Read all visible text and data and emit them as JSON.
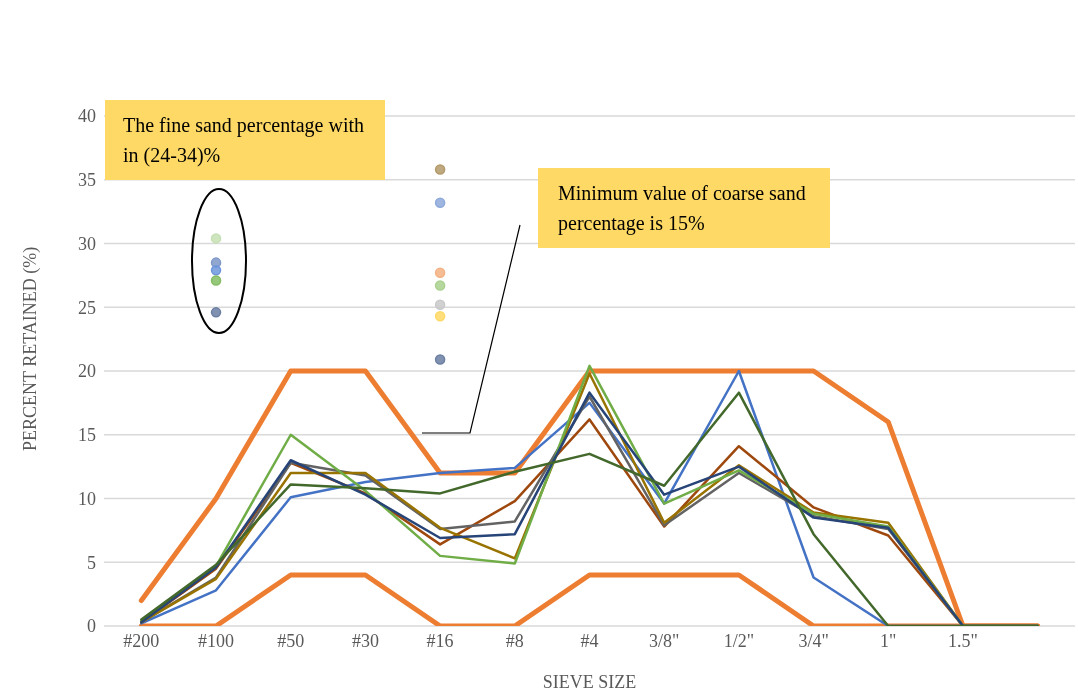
{
  "chart_data": {
    "type": "line",
    "xlabel": "SIEVE SIZE",
    "ylabel": "PERCENT RETAINED (%)",
    "categories": [
      "#200",
      "#100",
      "#50",
      "#30",
      "#16",
      "#8",
      "#4",
      "3/8\"",
      "1/2\"",
      "3/4\"",
      "1\"",
      "1.5\"",
      null
    ],
    "ylim": [
      0,
      40
    ],
    "yticks": [
      0,
      5,
      10,
      15,
      20,
      25,
      30,
      35,
      40
    ],
    "grid": "y",
    "marker": "none",
    "line_style": "solid",
    "annotations": [
      "The fine sand percentage with in (24-34)%",
      "Minimum value of coarse sand percentage is 15%"
    ],
    "series": [
      {
        "color": "#ed7d31",
        "values": [
          2,
          10,
          20,
          20,
          12,
          12,
          20,
          20,
          20,
          20,
          16,
          0,
          0
        ]
      },
      {
        "color": "#ed7d31",
        "values": [
          0,
          0,
          4,
          4,
          0,
          0,
          4,
          4,
          4,
          0,
          0,
          0,
          0
        ]
      },
      {
        "color": "#4472c4",
        "values": [
          0.2,
          2.8,
          10.1,
          11.3,
          12.0,
          12.4,
          17.5,
          9.6,
          20,
          3.8,
          0,
          0,
          0
        ]
      },
      {
        "color": "#9e480e",
        "values": [
          0.3,
          4.5,
          12.8,
          10.4,
          6.4,
          9.8,
          16.2,
          7.8,
          14.1,
          9.3,
          7.1,
          0,
          0
        ]
      },
      {
        "color": "#636363",
        "values": [
          0.3,
          3.8,
          12.8,
          11.8,
          7.6,
          8.2,
          18.0,
          7.9,
          12.0,
          8.6,
          7.6,
          0,
          0
        ]
      },
      {
        "color": "#997300",
        "values": [
          0.3,
          3.7,
          12.0,
          12.0,
          7.7,
          5.3,
          19.8,
          8.1,
          12.6,
          8.9,
          8.1,
          0,
          0
        ]
      },
      {
        "color": "#70ad47",
        "values": [
          0.4,
          4.7,
          15.0,
          10.6,
          5.5,
          4.9,
          20.4,
          9.6,
          12.2,
          8.8,
          7.8,
          0,
          0
        ]
      },
      {
        "color": "#264478",
        "values": [
          0.3,
          4.6,
          13.0,
          10.3,
          6.9,
          7.2,
          18.3,
          10.3,
          12.5,
          8.5,
          7.7,
          0,
          0
        ]
      },
      {
        "color": "#43682b",
        "values": [
          0.5,
          4.8,
          11.1,
          10.8,
          10.4,
          12.1,
          13.5,
          11.0,
          18.3,
          7.2,
          0,
          0,
          0
        ]
      },
      {
        "type": "scatter",
        "marker": "circle",
        "x": [
          "#100",
          "#100",
          "#100",
          "#100",
          "#100",
          "#100"
        ],
        "values": [
          30.4,
          null,
          28.5,
          27.9,
          27.1,
          24.6
        ],
        "colors": [
          "#c5e0b4",
          "#bf9000",
          "#7f98c8",
          "#6f96dc",
          "#84bd63",
          "#6b7fa3"
        ]
      },
      {
        "type": "scatter",
        "marker": "circle",
        "x": [
          "#16",
          "#16",
          "#16",
          "#16",
          "#16",
          "#16",
          "#16"
        ],
        "values": [
          35.8,
          33.2,
          27.7,
          26.7,
          25.2,
          24.3,
          20.9
        ],
        "colors": [
          "#b49a6a",
          "#8eaadb",
          "#f4b183",
          "#a9d18e",
          "#c9c9c9",
          "#ffd966",
          "#6b7fa3"
        ]
      }
    ]
  }
}
